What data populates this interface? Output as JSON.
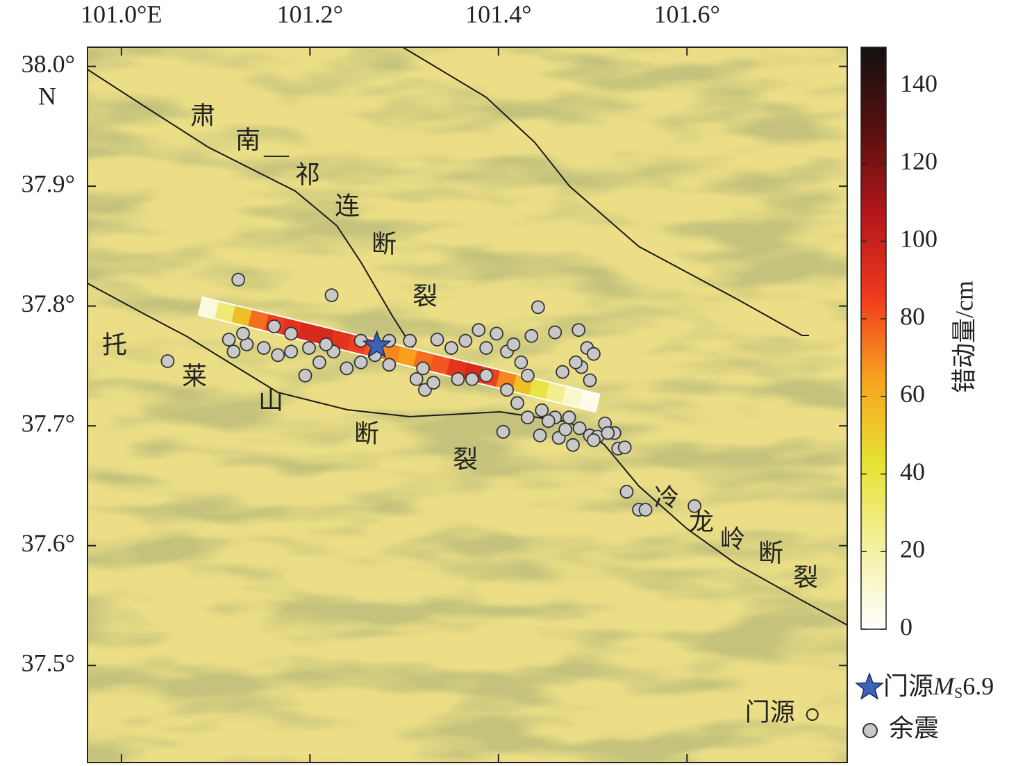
{
  "map": {
    "xlim": [
      100.964,
      101.77
    ],
    "ylim": [
      37.419,
      38.016
    ],
    "xticks": [
      {
        "value": 101.0,
        "label": "101.0°E"
      },
      {
        "value": 101.2,
        "label": "101.2°"
      },
      {
        "value": 101.4,
        "label": "101.4°"
      },
      {
        "value": 101.6,
        "label": "101.6°"
      }
    ],
    "yticks": [
      {
        "value": 38.0,
        "label": "38.0°"
      },
      {
        "value": 37.9,
        "label": "37.9°"
      },
      {
        "value": 37.8,
        "label": "37.8°"
      },
      {
        "value": 37.7,
        "label": "37.7°"
      },
      {
        "value": 37.6,
        "label": "37.6°"
      },
      {
        "value": 37.5,
        "label": "37.5°"
      }
    ],
    "y_hemisphere": "N",
    "fault_labels": [
      "肃南—祁连断裂",
      "托莱山断裂",
      "冷龙岭断裂"
    ],
    "town": {
      "name": "门源",
      "lon": 101.733,
      "lat": 37.459
    },
    "mainshock": {
      "lon": 101.271,
      "lat": 37.767,
      "color": "#3a62b8"
    },
    "aftershocks": {
      "color": "#c8c8c8",
      "points": [
        [
          101.124,
          37.822
        ],
        [
          101.223,
          37.809
        ],
        [
          101.442,
          37.799
        ],
        [
          101.049,
          37.754
        ],
        [
          101.114,
          37.772
        ],
        [
          101.119,
          37.762
        ],
        [
          101.133,
          37.768
        ],
        [
          101.151,
          37.765
        ],
        [
          101.166,
          37.759
        ],
        [
          101.18,
          37.762
        ],
        [
          101.195,
          37.742
        ],
        [
          101.21,
          37.753
        ],
        [
          101.225,
          37.762
        ],
        [
          101.239,
          37.748
        ],
        [
          101.254,
          37.753
        ],
        [
          101.269,
          37.759
        ],
        [
          101.284,
          37.751
        ],
        [
          101.306,
          37.771
        ],
        [
          101.32,
          37.748
        ],
        [
          101.322,
          37.73
        ],
        [
          101.331,
          37.736
        ],
        [
          101.335,
          37.772
        ],
        [
          101.35,
          37.765
        ],
        [
          101.365,
          37.771
        ],
        [
          101.379,
          37.78
        ],
        [
          101.387,
          37.765
        ],
        [
          101.398,
          37.777
        ],
        [
          101.409,
          37.762
        ],
        [
          101.416,
          37.768
        ],
        [
          101.424,
          37.753
        ],
        [
          101.431,
          37.742
        ],
        [
          101.409,
          37.73
        ],
        [
          101.42,
          37.719
        ],
        [
          101.431,
          37.707
        ],
        [
          101.446,
          37.713
        ],
        [
          101.46,
          37.707
        ],
        [
          101.405,
          37.695
        ],
        [
          101.444,
          37.692
        ],
        [
          101.464,
          37.69
        ],
        [
          101.475,
          37.707
        ],
        [
          101.486,
          37.698
        ],
        [
          101.497,
          37.692
        ],
        [
          101.505,
          37.691
        ],
        [
          101.513,
          37.702
        ],
        [
          101.523,
          37.694
        ],
        [
          101.527,
          37.681
        ],
        [
          101.534,
          37.682
        ],
        [
          101.536,
          37.645
        ],
        [
          101.549,
          37.63
        ],
        [
          101.556,
          37.63
        ],
        [
          101.608,
          37.633
        ],
        [
          101.435,
          37.775
        ],
        [
          101.46,
          37.778
        ],
        [
          101.485,
          37.78
        ],
        [
          101.494,
          37.765
        ],
        [
          101.501,
          37.76
        ],
        [
          101.488,
          37.749
        ],
        [
          101.497,
          37.738
        ],
        [
          101.468,
          37.745
        ],
        [
          101.482,
          37.753
        ],
        [
          101.387,
          37.742
        ],
        [
          101.372,
          37.739
        ],
        [
          101.357,
          37.739
        ],
        [
          101.199,
          37.765
        ],
        [
          101.217,
          37.768
        ],
        [
          101.162,
          37.783
        ],
        [
          101.18,
          37.777
        ],
        [
          101.129,
          37.777
        ],
        [
          101.284,
          37.771
        ],
        [
          101.254,
          37.771
        ],
        [
          101.313,
          37.739
        ],
        [
          101.453,
          37.704
        ],
        [
          101.471,
          37.697
        ],
        [
          101.479,
          37.684
        ],
        [
          101.501,
          37.688
        ],
        [
          101.516,
          37.694
        ]
      ]
    },
    "rupture": {
      "start": [
        101.084,
        37.8
      ],
      "end": [
        101.505,
        37.719
      ],
      "slip": [
        8,
        30,
        55,
        75,
        85,
        90,
        95,
        95,
        90,
        85,
        80,
        70,
        65,
        75,
        80,
        90,
        95,
        85,
        70,
        55,
        40,
        25,
        12,
        5
      ]
    }
  },
  "colorbar": {
    "label": "错动量/cm",
    "clim": [
      0,
      150
    ],
    "ticks": [
      0,
      20,
      40,
      60,
      80,
      100,
      120,
      140
    ],
    "colors": [
      "#ffffff",
      "#f4f0a0",
      "#e6e232",
      "#f6a41e",
      "#f03a1e",
      "#b4161a",
      "#561010",
      "#141010"
    ]
  },
  "legend": {
    "mainshock": {
      "place": "门源",
      "symbol": "M",
      "subscript": "S",
      "magnitude": 6.9
    },
    "aftershock": "余震"
  }
}
